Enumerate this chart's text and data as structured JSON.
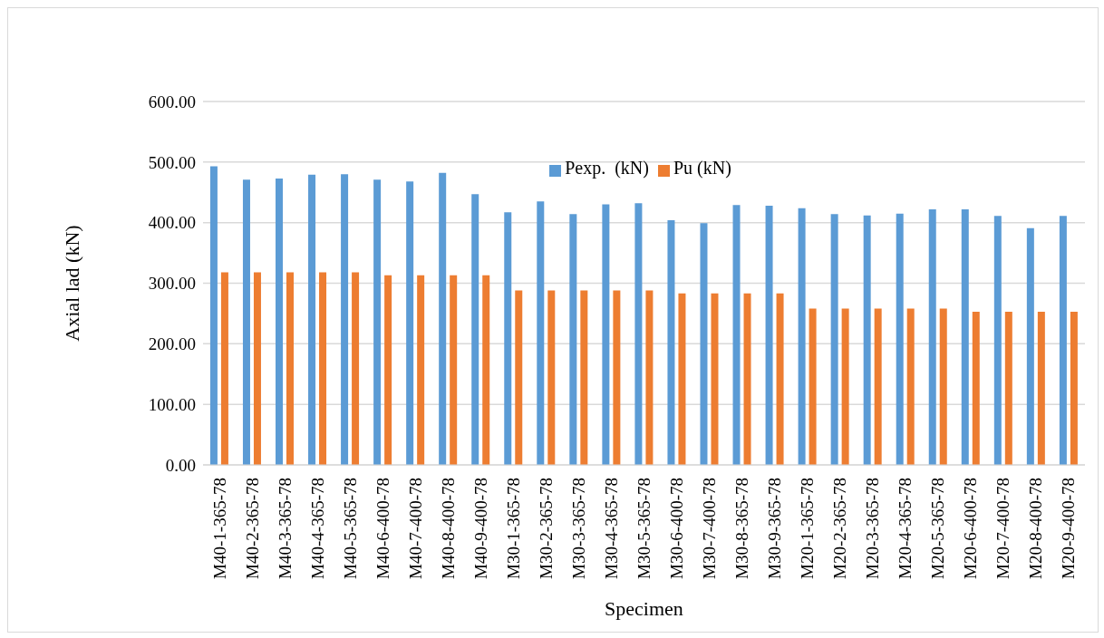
{
  "chart_data": {
    "type": "bar",
    "xlabel": "Specimen",
    "ylabel": "Axial lad (kN)",
    "categories": [
      "M40-1-365-78",
      "M40-2-365-78",
      "M40-3-365-78",
      "M40-4-365-78",
      "M40-5-365-78",
      "M40-6-400-78",
      "M40-7-400-78",
      "M40-8-400-78",
      "M40-9-400-78",
      "M30-1-365-78",
      "M30-2-365-78",
      "M30-3-365-78",
      "M30-4-365-78",
      "M30-5-365-78",
      "M30-6-400-78",
      "M30-7-400-78",
      "M30-8-365-78",
      "M30-9-365-78",
      "M20-1-365-78",
      "M20-2-365-78",
      "M20-3-365-78",
      "M20-4-365-78",
      "M20-5-365-78",
      "M20-6-400-78",
      "M20-7-400-78",
      "M20-8-400-78",
      "M20-9-400-78"
    ],
    "series": [
      {
        "name": "Pexp.  (kN)",
        "color": "#5b9bd5",
        "values": [
          493,
          471,
          473,
          479,
          480,
          471,
          468,
          482,
          447,
          417,
          435,
          414,
          430,
          432,
          404,
          399,
          429,
          428,
          424,
          414,
          412,
          415,
          422,
          422,
          411,
          391,
          411
        ]
      },
      {
        "name": "Pu (kN)",
        "color": "#ed7d31",
        "values": [
          318,
          318,
          318,
          318,
          318,
          313,
          313,
          313,
          313,
          288,
          288,
          288,
          288,
          288,
          283,
          283,
          283,
          283,
          258,
          258,
          258,
          258,
          258,
          253,
          253,
          253,
          253
        ]
      }
    ],
    "ylim": [
      0,
      600
    ],
    "yticks": [
      {
        "value": 0,
        "label": "0.00"
      },
      {
        "value": 100,
        "label": "100.00"
      },
      {
        "value": 200,
        "label": "200.00"
      },
      {
        "value": 300,
        "label": "300.00"
      },
      {
        "value": 400,
        "label": "400.00"
      },
      {
        "value": 500,
        "label": "500.00"
      },
      {
        "value": 600,
        "label": "600.00"
      }
    ],
    "grid": "y",
    "legend": "top"
  }
}
